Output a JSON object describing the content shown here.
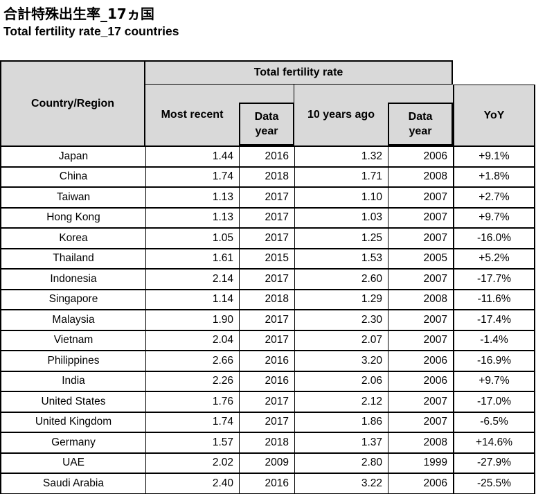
{
  "titles": {
    "ja": "合計特殊出生率_17ヵ国",
    "en": "Total fertility rate_17 countries"
  },
  "table": {
    "header": {
      "country": "Country/Region",
      "group": "Total fertility rate",
      "most_recent": "Most recent",
      "data_year_line1": "Data",
      "data_year_line2": "year",
      "ten_years_ago": "10 years ago",
      "yoy": "YoY"
    },
    "rows": [
      {
        "country": "Japan",
        "most_recent": "1.44",
        "year_recent": "2016",
        "ten_years_ago": "1.32",
        "year_past": "2006",
        "yoy": "+9.1%"
      },
      {
        "country": "China",
        "most_recent": "1.74",
        "year_recent": "2018",
        "ten_years_ago": "1.71",
        "year_past": "2008",
        "yoy": "+1.8%"
      },
      {
        "country": "Taiwan",
        "most_recent": "1.13",
        "year_recent": "2017",
        "ten_years_ago": "1.10",
        "year_past": "2007",
        "yoy": "+2.7%"
      },
      {
        "country": "Hong Kong",
        "most_recent": "1.13",
        "year_recent": "2017",
        "ten_years_ago": "1.03",
        "year_past": "2007",
        "yoy": "+9.7%"
      },
      {
        "country": "Korea",
        "most_recent": "1.05",
        "year_recent": "2017",
        "ten_years_ago": "1.25",
        "year_past": "2007",
        "yoy": "-16.0%"
      },
      {
        "country": "Thailand",
        "most_recent": "1.61",
        "year_recent": "2015",
        "ten_years_ago": "1.53",
        "year_past": "2005",
        "yoy": "+5.2%"
      },
      {
        "country": "Indonesia",
        "most_recent": "2.14",
        "year_recent": "2017",
        "ten_years_ago": "2.60",
        "year_past": "2007",
        "yoy": "-17.7%"
      },
      {
        "country": "Singapore",
        "most_recent": "1.14",
        "year_recent": "2018",
        "ten_years_ago": "1.29",
        "year_past": "2008",
        "yoy": "-11.6%"
      },
      {
        "country": "Malaysia",
        "most_recent": "1.90",
        "year_recent": "2017",
        "ten_years_ago": "2.30",
        "year_past": "2007",
        "yoy": "-17.4%"
      },
      {
        "country": "Vietnam",
        "most_recent": "2.04",
        "year_recent": "2017",
        "ten_years_ago": "2.07",
        "year_past": "2007",
        "yoy": "-1.4%"
      },
      {
        "country": "Philippines",
        "most_recent": "2.66",
        "year_recent": "2016",
        "ten_years_ago": "3.20",
        "year_past": "2006",
        "yoy": "-16.9%"
      },
      {
        "country": "India",
        "most_recent": "2.26",
        "year_recent": "2016",
        "ten_years_ago": "2.06",
        "year_past": "2006",
        "yoy": "+9.7%"
      },
      {
        "country": "United States",
        "most_recent": "1.76",
        "year_recent": "2017",
        "ten_years_ago": "2.12",
        "year_past": "2007",
        "yoy": "-17.0%"
      },
      {
        "country": "United Kingdom",
        "most_recent": "1.74",
        "year_recent": "2017",
        "ten_years_ago": "1.86",
        "year_past": "2007",
        "yoy": "-6.5%"
      },
      {
        "country": "Germany",
        "most_recent": "1.57",
        "year_recent": "2018",
        "ten_years_ago": "1.37",
        "year_past": "2008",
        "yoy": "+14.6%"
      },
      {
        "country": "UAE",
        "most_recent": "2.02",
        "year_recent": "2009",
        "ten_years_ago": "2.80",
        "year_past": "1999",
        "yoy": "-27.9%"
      },
      {
        "country": "Saudi Arabia",
        "most_recent": "2.40",
        "year_recent": "2016",
        "ten_years_ago": "3.22",
        "year_past": "2006",
        "yoy": "-25.5%"
      }
    ]
  },
  "colors": {
    "header_bg": "#d9d9d9",
    "border": "#000000",
    "text": "#000000",
    "background": "#ffffff"
  }
}
